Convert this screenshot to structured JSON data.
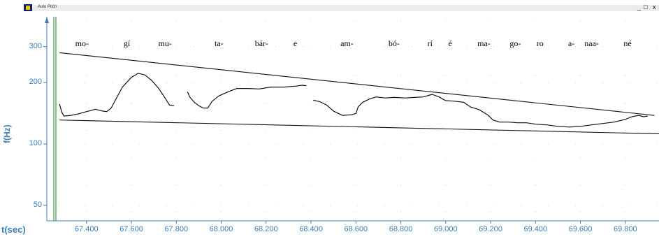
{
  "window": {
    "title": "Auto Pitch",
    "controls": [
      "_",
      "□",
      "x"
    ]
  },
  "chart_data": {
    "type": "line",
    "title": "",
    "xlabel": "t(sec)",
    "ylabel": "f(Hz)",
    "y_scale": "log",
    "ylim": [
      42,
      420
    ],
    "xlim": [
      67.27,
      69.95
    ],
    "y_ticks": [
      50,
      100,
      200,
      300
    ],
    "x_ticks": [
      "67.400",
      "67.600",
      "67.800",
      "68.000",
      "68.200",
      "68.400",
      "68.600",
      "68.800",
      "69.000",
      "69.200",
      "69.400",
      "69.600",
      "69.800"
    ],
    "grid": true,
    "syllables": [
      {
        "text": "mo-",
        "t": 67.38
      },
      {
        "text": "gí",
        "t": 67.58
      },
      {
        "text": "mu-",
        "t": 67.75
      },
      {
        "text": "ta-",
        "t": 67.99
      },
      {
        "text": "bár-",
        "t": 68.18
      },
      {
        "text": "e",
        "t": 68.33
      },
      {
        "text": "am-",
        "t": 68.56
      },
      {
        "text": "bó-",
        "t": 68.77
      },
      {
        "text": "rí",
        "t": 68.93
      },
      {
        "text": "é",
        "t": 69.02
      },
      {
        "text": "ma-",
        "t": 69.17
      },
      {
        "text": "go-",
        "t": 69.31
      },
      {
        "text": "ro",
        "t": 69.42
      },
      {
        "text": "a-",
        "t": 69.56
      },
      {
        "text": "naa-",
        "t": 69.65
      },
      {
        "text": "né",
        "t": 69.81
      }
    ],
    "series": [
      {
        "kind": "pitch-contour",
        "segments": [
          [
            [
              67.28,
              157
            ],
            [
              67.29,
              143
            ],
            [
              67.3,
              137
            ],
            [
              67.33,
              138
            ],
            [
              67.36,
              140
            ],
            [
              67.4,
              144
            ],
            [
              67.44,
              148
            ],
            [
              67.47,
              145
            ],
            [
              67.49,
              144
            ],
            [
              67.51,
              150
            ],
            [
              67.53,
              165
            ],
            [
              67.56,
              190
            ],
            [
              67.6,
              212
            ],
            [
              67.63,
              222
            ],
            [
              67.66,
              218
            ],
            [
              67.69,
              205
            ],
            [
              67.72,
              188
            ],
            [
              67.75,
              168
            ],
            [
              67.77,
              155
            ],
            [
              67.79,
              154
            ]
          ],
          [
            [
              67.85,
              180
            ],
            [
              67.86,
              170
            ],
            [
              67.88,
              160
            ],
            [
              67.9,
              154
            ],
            [
              67.92,
              150
            ],
            [
              67.94,
              150
            ],
            [
              67.96,
              162
            ],
            [
              67.99,
              172
            ],
            [
              68.03,
              180
            ],
            [
              68.07,
              187
            ],
            [
              68.12,
              187
            ],
            [
              68.17,
              186
            ],
            [
              68.22,
              190
            ],
            [
              68.28,
              190
            ],
            [
              68.33,
              192
            ],
            [
              68.36,
              194
            ],
            [
              68.38,
              193
            ]
          ],
          [
            [
              68.41,
              164
            ],
            [
              68.44,
              161
            ],
            [
              68.47,
              155
            ],
            [
              68.5,
              145
            ],
            [
              68.54,
              138
            ],
            [
              68.58,
              139
            ],
            [
              68.6,
              141
            ],
            [
              68.61,
              152
            ],
            [
              68.63,
              160
            ],
            [
              68.66,
              166
            ],
            [
              68.69,
              170
            ],
            [
              68.73,
              168
            ],
            [
              68.77,
              169
            ],
            [
              68.82,
              168
            ],
            [
              68.86,
              169
            ],
            [
              68.9,
              170
            ],
            [
              68.94,
              175
            ],
            [
              68.97,
              170
            ],
            [
              69.0,
              163
            ],
            [
              69.04,
              162
            ],
            [
              69.08,
              160
            ],
            [
              69.11,
              152
            ],
            [
              69.15,
              147
            ],
            [
              69.19,
              138
            ],
            [
              69.21,
              131
            ],
            [
              69.24,
              128
            ],
            [
              69.28,
              128
            ],
            [
              69.32,
              127
            ],
            [
              69.36,
              127
            ],
            [
              69.4,
              125
            ],
            [
              69.45,
              124
            ],
            [
              69.5,
              122
            ],
            [
              69.55,
              121
            ],
            [
              69.6,
              122
            ],
            [
              69.65,
              124
            ],
            [
              69.7,
              126
            ],
            [
              69.75,
              128
            ],
            [
              69.8,
              132
            ],
            [
              69.83,
              136
            ],
            [
              69.86,
              138
            ],
            [
              69.88,
              136
            ],
            [
              69.9,
              137
            ]
          ]
        ]
      },
      {
        "kind": "topline",
        "points": [
          [
            67.28,
            280
          ],
          [
            69.93,
            138
          ]
        ]
      },
      {
        "kind": "baseline",
        "points": [
          [
            67.28,
            131
          ],
          [
            69.97,
            112
          ]
        ]
      }
    ]
  }
}
